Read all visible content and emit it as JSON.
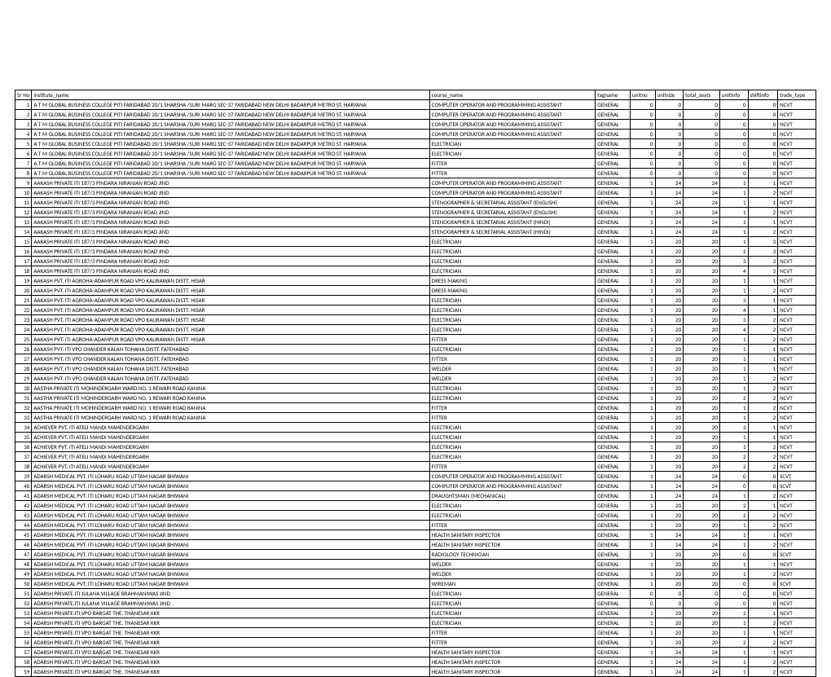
{
  "table": {
    "columns": [
      {
        "key": "srno",
        "label": "Sr No",
        "align": "right"
      },
      {
        "key": "institute",
        "label": "institute_name",
        "align": "left"
      },
      {
        "key": "course",
        "label": "course_name",
        "align": "left"
      },
      {
        "key": "tag",
        "label": "tagname",
        "align": "left"
      },
      {
        "key": "unitno",
        "label": "unitno",
        "align": "right"
      },
      {
        "key": "unitsize",
        "label": "unitsize",
        "align": "right"
      },
      {
        "key": "total",
        "label": "total_seats",
        "align": "right"
      },
      {
        "key": "unitinfo",
        "label": "unitinfo",
        "align": "right"
      },
      {
        "key": "shift",
        "label": "shiftinfo",
        "align": "right"
      },
      {
        "key": "trade",
        "label": "trade_type",
        "align": "left"
      }
    ],
    "rows": [
      [
        1,
        "A T M GLOBAL BUSINESS COLLEGE PITI  FARIDABAD 20/1 SHARSHA /SURI MARG SEC-37 FARIDABAD NEW DELHI BADARPUR METRO ST. HARYANA",
        "COMPUTER OPERATOR AND PROGRAMMING ASSISTANT",
        "GENERAL",
        0,
        0,
        0,
        0,
        0,
        "NCVT"
      ],
      [
        2,
        "A T M GLOBAL BUSINESS COLLEGE PITI  FARIDABAD 20/1 SHARSHA /SURI MARG SEC-37 FARIDABAD NEW DELHI BADARPUR METRO ST. HARYANA",
        "COMPUTER OPERATOR AND PROGRAMMING ASSISTANT",
        "GENERAL",
        0,
        0,
        0,
        0,
        0,
        "NCVT"
      ],
      [
        3,
        "A T M GLOBAL BUSINESS COLLEGE PITI  FARIDABAD 20/1 SHARSHA /SURI MARG SEC-37 FARIDABAD NEW DELHI BADARPUR METRO ST. HARYANA",
        "COMPUTER OPERATOR AND PROGRAMMING ASSISTANT",
        "GENERAL",
        0,
        0,
        0,
        0,
        0,
        "NCVT"
      ],
      [
        4,
        "A T M GLOBAL BUSINESS COLLEGE PITI  FARIDABAD 20/1 SHARSHA /SURI MARG SEC-37 FARIDABAD NEW DELHI BADARPUR METRO ST. HARYANA",
        "COMPUTER OPERATOR AND PROGRAMMING ASSISTANT",
        "GENERAL",
        0,
        0,
        0,
        0,
        0,
        "NCVT"
      ],
      [
        5,
        "A T M GLOBAL BUSINESS COLLEGE PITI  FARIDABAD 20/1 SHARSHA /SURI MARG SEC-37 FARIDABAD NEW DELHI BADARPUR METRO ST. HARYANA",
        "ELECTRICIAN",
        "GENERAL",
        0,
        0,
        0,
        0,
        0,
        "NCVT"
      ],
      [
        6,
        "A T M GLOBAL BUSINESS COLLEGE PITI  FARIDABAD 20/1 SHARSHA /SURI MARG SEC-37 FARIDABAD NEW DELHI BADARPUR METRO ST. HARYANA",
        "ELECTRICIAN",
        "GENERAL",
        0,
        0,
        0,
        0,
        0,
        "NCVT"
      ],
      [
        7,
        "A T M GLOBAL BUSINESS COLLEGE PITI  FARIDABAD 20/1 SHARSHA /SURI MARG SEC-37 FARIDABAD NEW DELHI BADARPUR METRO ST. HARYANA",
        "FITTER",
        "GENERAL",
        0,
        0,
        0,
        0,
        0,
        "NCVT"
      ],
      [
        8,
        "A T M GLOBAL BUSINESS COLLEGE PITI  FARIDABAD 20/1 SHARSHA /SURI MARG SEC-37 FARIDABAD NEW DELHI BADARPUR METRO ST. HARYANA",
        "FITTER",
        "GENERAL",
        0,
        0,
        0,
        0,
        0,
        "NCVT"
      ],
      [
        9,
        "AAKASH PRIVATE ITI  187/3  PINDARA  NIRANJAN ROAD  JIND",
        "COMPUTER OPERATOR AND PROGRAMMING ASSISTANT",
        "GENERAL",
        1,
        24,
        24,
        1,
        1,
        "NCVT"
      ],
      [
        10,
        "AAKASH PRIVATE ITI  187/3  PINDARA  NIRANJAN ROAD  JIND",
        "COMPUTER OPERATOR AND PROGRAMMING ASSISTANT",
        "GENERAL",
        1,
        24,
        24,
        1,
        2,
        "NCVT"
      ],
      [
        11,
        "AAKASH PRIVATE ITI  187/3  PINDARA  NIRANJAN ROAD  JIND",
        "STENOGRAPHER & SECRETARIAL ASSISTANT (ENGLISH)",
        "GENERAL",
        1,
        24,
        24,
        1,
        1,
        "NCVT"
      ],
      [
        12,
        "AAKASH PRIVATE ITI  187/3  PINDARA  NIRANJAN ROAD  JIND",
        "STENOGRAPHER & SECRETARIAL ASSISTANT (ENGLISH)",
        "GENERAL",
        1,
        24,
        24,
        1,
        2,
        "NCVT"
      ],
      [
        13,
        "AAKASH PRIVATE ITI  187/3  PINDARA  NIRANJAN ROAD  JIND",
        "STENOGRAPHER & SECRETARIAL ASSISTANT (HINDI)",
        "GENERAL",
        1,
        24,
        24,
        1,
        1,
        "NCVT"
      ],
      [
        14,
        "AAKASH PRIVATE ITI  187/3  PINDARA  NIRANJAN ROAD  JIND",
        "STENOGRAPHER & SECRETARIAL ASSISTANT (HINDI)",
        "GENERAL",
        1,
        24,
        24,
        1,
        2,
        "NCVT"
      ],
      [
        15,
        "AAKASH PRIVATE ITI  187/3  PINDARA  NIRANJAN ROAD  JIND",
        "ELECTRICIAN",
        "GENERAL",
        1,
        20,
        20,
        1,
        3,
        "NCVT"
      ],
      [
        16,
        "AAKASH PRIVATE ITI  187/3  PINDARA  NIRANJAN ROAD  JIND",
        "ELECTRICIAN",
        "GENERAL",
        1,
        20,
        20,
        2,
        3,
        "NCVT"
      ],
      [
        17,
        "AAKASH PRIVATE ITI  187/3  PINDARA  NIRANJAN ROAD  JIND",
        "ELECTRICIAN",
        "GENERAL",
        1,
        20,
        20,
        3,
        3,
        "NCVT"
      ],
      [
        18,
        "AAKASH PRIVATE ITI  187/3  PINDARA  NIRANJAN ROAD  JIND",
        "ELECTRICIAN",
        "GENERAL",
        1,
        20,
        20,
        4,
        3,
        "NCVT"
      ],
      [
        19,
        "AAKASH PVT. ITI  AGROHA-ADAMPUR ROAD  VPO KALIRAWAN DISTT. HISAR",
        "DRESS MAKING",
        "GENERAL",
        1,
        20,
        20,
        1,
        1,
        "NCVT"
      ],
      [
        20,
        "AAKASH PVT. ITI  AGROHA-ADAMPUR ROAD  VPO KALIRAWAN DISTT. HISAR",
        "DRESS MAKING",
        "GENERAL",
        1,
        20,
        20,
        1,
        2,
        "NCVT"
      ],
      [
        21,
        "AAKASH PVT. ITI  AGROHA-ADAMPUR ROAD  VPO KALIRAWAN DISTT. HISAR",
        "ELECTRICIAN",
        "GENERAL",
        1,
        20,
        20,
        3,
        1,
        "NCVT"
      ],
      [
        22,
        "AAKASH PVT. ITI  AGROHA-ADAMPUR ROAD  VPO KALIRAWAN DISTT. HISAR",
        "ELECTRICIAN",
        "GENERAL",
        1,
        20,
        20,
        4,
        1,
        "NCVT"
      ],
      [
        23,
        "AAKASH PVT. ITI  AGROHA-ADAMPUR ROAD  VPO KALIRAWAN DISTT. HISAR",
        "ELECTRICIAN",
        "GENERAL",
        1,
        20,
        20,
        3,
        2,
        "NCVT"
      ],
      [
        24,
        "AAKASH PVT. ITI  AGROHA-ADAMPUR ROAD  VPO KALIRAWAN DISTT. HISAR",
        "ELECTRICIAN",
        "GENERAL",
        1,
        20,
        20,
        4,
        2,
        "NCVT"
      ],
      [
        25,
        "AAKASH PVT. ITI  AGROHA-ADAMPUR ROAD  VPO KALIRAWAN DISTT. HISAR",
        "FITTER",
        "GENERAL",
        1,
        20,
        20,
        1,
        2,
        "NCVT"
      ],
      [
        26,
        "AAKASH PVT. ITI  VPO CHANDER KALAN  TOHANA DISTT. FATEHABAD",
        "ELECTRICIAN",
        "GENERAL",
        1,
        20,
        20,
        1,
        1,
        "NCVT"
      ],
      [
        27,
        "AAKASH PVT. ITI  VPO CHANDER KALAN  TOHANA DISTT. FATEHABAD",
        "FITTER",
        "GENERAL",
        1,
        20,
        20,
        1,
        1,
        "NCVT"
      ],
      [
        28,
        "AAKASH PVT. ITI  VPO CHANDER KALAN  TOHANA DISTT. FATEHABAD",
        "WELDER",
        "GENERAL",
        1,
        20,
        20,
        1,
        1,
        "NCVT"
      ],
      [
        29,
        "AAKASH PVT. ITI  VPO CHANDER KALAN  TOHANA DISTT. FATEHABAD",
        "WELDER",
        "GENERAL",
        1,
        20,
        20,
        1,
        2,
        "NCVT"
      ],
      [
        30,
        "AASTHA PRIVATE ITI MOHINDERGARH WARD NO. 1 REWARI ROAD KANINA",
        "ELECTRICIAN",
        "GENERAL",
        1,
        20,
        20,
        1,
        2,
        "NCVT"
      ],
      [
        31,
        "AASTHA PRIVATE ITI MOHINDERGARH WARD NO. 1 REWARI ROAD KANINA",
        "ELECTRICIAN",
        "GENERAL",
        1,
        20,
        20,
        2,
        2,
        "NCVT"
      ],
      [
        32,
        "AASTHA PRIVATE ITI MOHINDERGARH WARD NO. 1 REWARI ROAD KANINA",
        "FITTER",
        "GENERAL",
        1,
        20,
        20,
        1,
        2,
        "NCVT"
      ],
      [
        33,
        "AASTHA PRIVATE ITI MOHINDERGARH WARD NO. 1 REWARI ROAD KANINA",
        "FITTER",
        "GENERAL",
        1,
        20,
        20,
        1,
        2,
        "NCVT"
      ],
      [
        34,
        "ACHIEVER PVT. ITI ATELI MANDI  MAHENDERGARH",
        "ELECTRICIAN",
        "GENERAL",
        1,
        20,
        20,
        3,
        1,
        "NCVT"
      ],
      [
        35,
        "ACHIEVER PVT. ITI ATELI MANDI  MAHENDERGARH",
        "ELECTRICIAN",
        "GENERAL",
        1,
        20,
        20,
        1,
        1,
        "NCVT"
      ],
      [
        36,
        "ACHIEVER PVT. ITI ATELI MANDI  MAHENDERGARH",
        "ELECTRICIAN",
        "GENERAL",
        1,
        20,
        20,
        1,
        2,
        "NCVT"
      ],
      [
        37,
        "ACHIEVER PVT. ITI ATELI MANDI  MAHENDERGARH",
        "ELECTRICIAN",
        "GENERAL",
        1,
        20,
        20,
        2,
        2,
        "NCVT"
      ],
      [
        38,
        "ACHIEVER PVT. ITI ATELI MANDI  MAHENDERGARH",
        "FITTER",
        "GENERAL",
        1,
        20,
        20,
        2,
        2,
        "NCVT"
      ],
      [
        39,
        "ADARSH MEDICAL PVT. ITI  LOHARU ROAD  UTTAM NAGAR  BHIWANI",
        "COMPUTER OPERATOR AND PROGRAMMING ASSISTANT",
        "GENERAL",
        1,
        24,
        24,
        0,
        0,
        "SCVT"
      ],
      [
        40,
        "ADARSH MEDICAL PVT. ITI  LOHARU ROAD  UTTAM NAGAR  BHIWANI",
        "COMPUTER OPERATOR AND PROGRAMMING ASSISTANT",
        "GENERAL",
        1,
        24,
        24,
        0,
        0,
        "SCVT"
      ],
      [
        41,
        "ADARSH MEDICAL PVT. ITI  LOHARU ROAD  UTTAM NAGAR  BHIWANI",
        "DRAUGHTSMAN (MECHANICAL)",
        "GENERAL",
        1,
        24,
        24,
        1,
        2,
        "NCVT"
      ],
      [
        42,
        "ADARSH MEDICAL PVT. ITI  LOHARU ROAD  UTTAM NAGAR  BHIWANI",
        "ELECTRICIAN",
        "GENERAL",
        1,
        20,
        20,
        2,
        1,
        "NCVT"
      ],
      [
        43,
        "ADARSH MEDICAL PVT. ITI  LOHARU ROAD  UTTAM NAGAR  BHIWANI",
        "ELECTRICIAN",
        "GENERAL",
        1,
        20,
        20,
        2,
        2,
        "NCVT"
      ],
      [
        44,
        "ADARSH MEDICAL PVT. ITI  LOHARU ROAD  UTTAM NAGAR  BHIWANI",
        "FITTER",
        "GENERAL",
        1,
        20,
        20,
        1,
        2,
        "NCVT"
      ],
      [
        45,
        "ADARSH MEDICAL PVT. ITI  LOHARU ROAD  UTTAM NAGAR  BHIWANI",
        "HEALTH SANITARY INSPECTOR",
        "GENERAL",
        1,
        24,
        24,
        1,
        1,
        "NCVT"
      ],
      [
        46,
        "ADARSH MEDICAL PVT. ITI  LOHARU ROAD  UTTAM NAGAR  BHIWANI",
        "HEALTH SANITARY INSPECTOR",
        "GENERAL",
        1,
        24,
        24,
        1,
        2,
        "NCVT"
      ],
      [
        47,
        "ADARSH MEDICAL PVT. ITI  LOHARU ROAD  UTTAM NAGAR  BHIWANI",
        "RADIOLOGY TECHNICIAN",
        "GENERAL",
        1,
        20,
        20,
        0,
        0,
        "SCVT"
      ],
      [
        48,
        "ADARSH MEDICAL PVT. ITI  LOHARU ROAD  UTTAM NAGAR  BHIWANI",
        "WELDER",
        "GENERAL",
        1,
        20,
        20,
        1,
        1,
        "NCVT"
      ],
      [
        49,
        "ADARSH MEDICAL PVT. ITI  LOHARU ROAD  UTTAM NAGAR  BHIWANI",
        "WELDER",
        "GENERAL",
        1,
        20,
        20,
        1,
        2,
        "NCVT"
      ],
      [
        50,
        "ADARSH MEDICAL PVT. ITI  LOHARU ROAD  UTTAM NAGAR  BHIWANI",
        "WIREMAN",
        "GENERAL",
        1,
        20,
        20,
        0,
        0,
        "SCVT"
      ],
      [
        51,
        "ADARSH PRIVATE.ITI  JULANA  VILLAGE BRAHMANIWAS JIND",
        "ELECTRICIAN",
        "GENERAL",
        0,
        0,
        0,
        0,
        0,
        "NCVT"
      ],
      [
        52,
        "ADARSH PRIVATE.ITI  JULANA  VILLAGE BRAHMANIWAS JIND",
        "ELECTRICIAN",
        "GENERAL",
        0,
        0,
        0,
        0,
        0,
        "NCVT"
      ],
      [
        53,
        "ADARSH PRIVATE.ITI  VPO BARGAT  THE. THANESAR  KKR",
        "ELECTRICIAN",
        "GENERAL",
        1,
        20,
        20,
        2,
        1,
        "NCVT"
      ],
      [
        54,
        "ADARSH PRIVATE.ITI  VPO BARGAT  THE. THANESAR  KKR",
        "ELECTRICIAN",
        "GENERAL",
        1,
        20,
        20,
        1,
        2,
        "NCVT"
      ],
      [
        55,
        "ADARSH PRIVATE.ITI  VPO BARGAT  THE. THANESAR  KKR",
        "FITTER",
        "GENERAL",
        1,
        20,
        20,
        1,
        1,
        "NCVT"
      ],
      [
        56,
        "ADARSH PRIVATE.ITI  VPO BARGAT  THE. THANESAR  KKR",
        "FITTER",
        "GENERAL",
        1,
        20,
        20,
        2,
        2,
        "NCVT"
      ],
      [
        57,
        "ADARSH PRIVATE.ITI  VPO BARGAT  THE. THANESAR  KKR",
        "HEALTH SANITARY INSPECTOR",
        "GENERAL",
        1,
        24,
        24,
        1,
        1,
        "NCVT"
      ],
      [
        58,
        "ADARSH PRIVATE.ITI  VPO BARGAT  THE. THANESAR  KKR",
        "HEALTH SANITARY INSPECTOR",
        "GENERAL",
        1,
        24,
        24,
        1,
        2,
        "NCVT"
      ],
      [
        59,
        "ADARSH PRIVATE.ITI  VPO BARGAT  THE. THANESAR  KKR",
        "HEALTH SANITARY INSPECTOR",
        "GENERAL",
        1,
        24,
        24,
        1,
        2,
        "NCVT"
      ]
    ]
  }
}
